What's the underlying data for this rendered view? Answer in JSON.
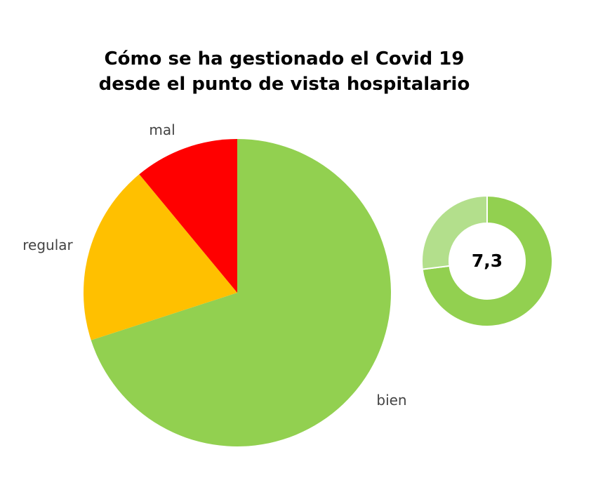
{
  "chart_data": [
    {
      "type": "pie",
      "title_lines": [
        "Cómo se ha gestionado el Covid 19",
        "desde el punto de vista hospitalario"
      ],
      "slices": [
        {
          "label": "bien",
          "value": 70,
          "color": "#92d050"
        },
        {
          "label": "regular",
          "value": 19,
          "color": "#ffc000"
        },
        {
          "label": "mal",
          "value": 11,
          "color": "#ff0000"
        }
      ]
    },
    {
      "type": "donut",
      "center_label": "7,3",
      "value": 7.3,
      "max": 10,
      "colors": {
        "filled": "#92d050",
        "remaining": "#b3df8c"
      }
    }
  ]
}
